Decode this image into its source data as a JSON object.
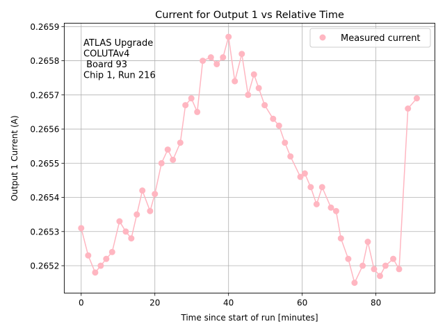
{
  "chart_data": {
    "type": "line",
    "title": "Current for Output 1 vs Relative Time",
    "xlabel": "Time since start of run [minutes]",
    "ylabel": "Output 1 Current (A)",
    "xlim": [
      -4.6,
      96.0
    ],
    "ylim": [
      0.26512,
      0.26591
    ],
    "x_ticks": [
      0,
      20,
      40,
      60,
      80
    ],
    "x_tick_labels": [
      "0",
      "20",
      "40",
      "60",
      "80"
    ],
    "y_ticks": [
      0.2652,
      0.2653,
      0.2654,
      0.2655,
      0.2656,
      0.2657,
      0.2658,
      0.2659
    ],
    "y_tick_labels": [
      "0.2652",
      "0.2653",
      "0.2654",
      "0.2655",
      "0.2656",
      "0.2657",
      "0.2658",
      "0.2659"
    ],
    "grid": true,
    "legend_position": "top-right",
    "annotation": [
      "ATLAS Upgrade",
      "COLUTAv4",
      " Board 93",
      "Chip 1, Run 216"
    ],
    "series": [
      {
        "name": "Measured current",
        "color": "#ffb6c1",
        "marker": "circle",
        "x": [
          0.0,
          1.9,
          3.8,
          5.3,
          6.8,
          8.4,
          10.4,
          12.1,
          13.6,
          15.1,
          16.6,
          18.7,
          20.0,
          21.8,
          23.5,
          24.9,
          26.9,
          28.3,
          29.9,
          31.5,
          33.0,
          35.2,
          36.8,
          38.5,
          40.0,
          41.7,
          43.6,
          45.3,
          46.9,
          48.2,
          49.8,
          52.1,
          53.7,
          55.3,
          56.8,
          59.5,
          60.7,
          62.3,
          63.9,
          65.4,
          67.8,
          69.2,
          70.5,
          72.5,
          74.2,
          76.4,
          77.8,
          79.5,
          81.1,
          82.6,
          84.7,
          86.3,
          88.7,
          91.1
        ],
        "y": [
          0.26531,
          0.26523,
          0.26518,
          0.2652,
          0.26522,
          0.26524,
          0.26533,
          0.2653,
          0.26528,
          0.26535,
          0.26542,
          0.26536,
          0.26541,
          0.2655,
          0.26554,
          0.26551,
          0.26556,
          0.26567,
          0.26569,
          0.26565,
          0.2658,
          0.26581,
          0.26579,
          0.26581,
          0.26587,
          0.26574,
          0.26582,
          0.2657,
          0.26576,
          0.26572,
          0.26567,
          0.26563,
          0.26561,
          0.26556,
          0.26552,
          0.26546,
          0.26547,
          0.26543,
          0.26538,
          0.26543,
          0.26537,
          0.26536,
          0.26528,
          0.26522,
          0.26515,
          0.2652,
          0.26527,
          0.26519,
          0.26517,
          0.2652,
          0.26522,
          0.26519,
          0.26566,
          0.26569
        ]
      }
    ]
  }
}
